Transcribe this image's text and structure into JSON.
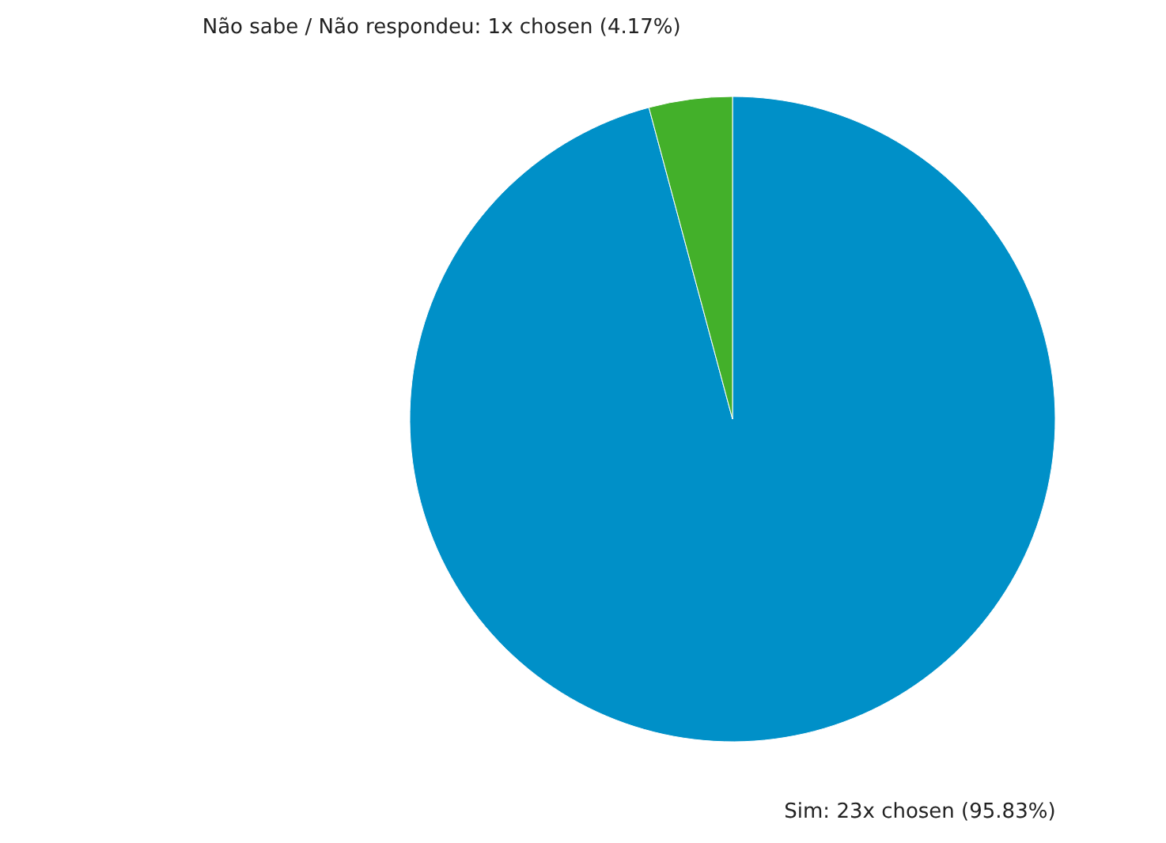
{
  "chart_data": {
    "type": "pie",
    "categories": [
      "Sim",
      "Não sabe / Não respondeu"
    ],
    "values": [
      95.83,
      4.17
    ],
    "colors": [
      "#0090c8",
      "#43b02a"
    ],
    "value_labels": [
      "23x chosen (95.83%)",
      "1x chosen (4.17%)"
    ]
  }
}
